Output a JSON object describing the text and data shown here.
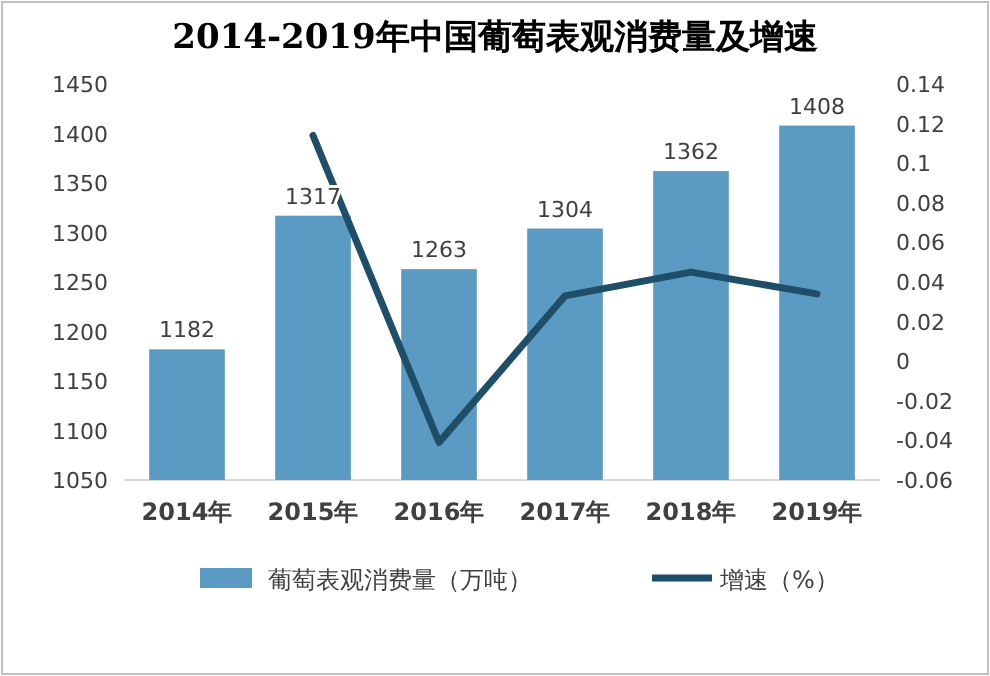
{
  "chart_data": {
    "type": "bar",
    "title": "2014-2019年中国葡萄表观消费量及增速",
    "categories": [
      "2014年",
      "2015年",
      "2016年",
      "2017年",
      "2018年",
      "2019年"
    ],
    "series": [
      {
        "name": "葡萄表观消费量（万吨）",
        "color": "#5b9ac2",
        "values": [
          1182,
          1317,
          1263,
          1304,
          1362,
          1408
        ],
        "value_labels": [
          "1182",
          "1317",
          "1263",
          "1304",
          "1362",
          "1408"
        ]
      },
      {
        "name": "增速（%）",
        "type": "line",
        "axis": "y2",
        "color": "#1f4e68",
        "values": [
          null,
          0.114,
          -0.041,
          0.033,
          0.045,
          0.034
        ]
      }
    ],
    "ylim": [
      1050,
      1450
    ],
    "yticks": [
      1050,
      1100,
      1150,
      1200,
      1250,
      1300,
      1350,
      1400,
      1450
    ],
    "y2lim": [
      -0.06,
      0.14
    ],
    "y2ticks": [
      -0.06,
      -0.04,
      -0.02,
      0,
      0.02,
      0.04,
      0.06,
      0.08,
      0.1,
      0.12,
      0.14
    ],
    "grid": false,
    "legend": "bottom",
    "marker": "none",
    "line_style": "solid"
  }
}
